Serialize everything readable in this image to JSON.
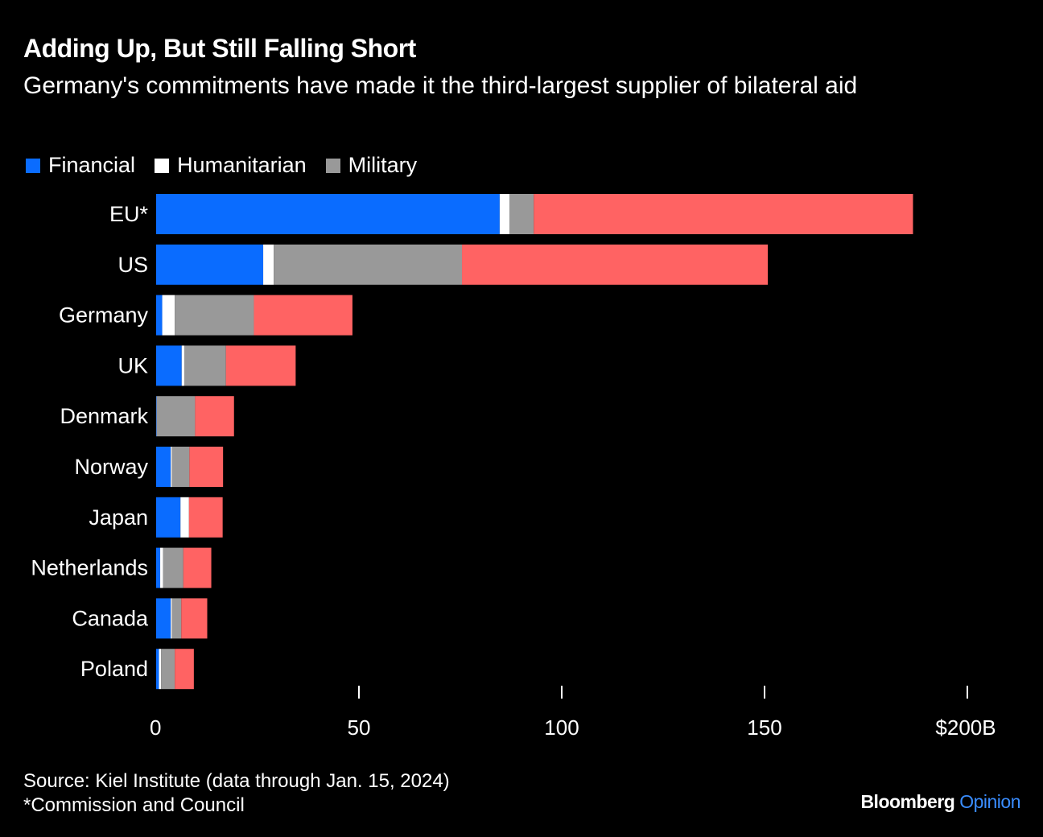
{
  "title": "Adding Up, But Still Falling Short",
  "subtitle": "Germany's commitments have made it the third-largest supplier of bilateral aid",
  "footer": {
    "source": "Source: Kiel Institute (data through Jan. 15, 2024)",
    "note": "*Commission and Council"
  },
  "logo": {
    "brand": "Bloomberg",
    "section": "Opinion"
  },
  "chart_data": {
    "type": "bar",
    "orientation": "horizontal",
    "stacked": true,
    "categories": [
      "EU*",
      "US",
      "Germany",
      "UK",
      "Denmark",
      "Norway",
      "Japan",
      "Netherlands",
      "Canada",
      "Poland"
    ],
    "series": [
      {
        "name": "Financial",
        "color": "#0a6cff",
        "values": [
          84.7,
          26.4,
          1.5,
          6.3,
          0.1,
          3.6,
          6.0,
          1.0,
          3.6,
          0.7
        ]
      },
      {
        "name": "Humanitarian",
        "color": "#ffffff",
        "values": [
          2.4,
          2.6,
          3.1,
          0.7,
          0.0,
          0.3,
          2.1,
          0.7,
          0.3,
          0.5
        ]
      },
      {
        "name": "Military",
        "color": "#999999",
        "values": [
          6.0,
          46.4,
          19.5,
          10.2,
          9.5,
          4.3,
          0.0,
          5.0,
          2.3,
          3.4
        ]
      },
      {
        "color": "#ff6363",
        "values": [
          93.5,
          75.4,
          24.3,
          17.2,
          9.6,
          8.3,
          8.3,
          6.9,
          6.4,
          4.7
        ]
      }
    ],
    "xlim": [
      0,
      200
    ],
    "xticks": [
      0,
      50,
      100,
      150,
      200
    ],
    "xtick_labels": [
      "0",
      "50",
      "100",
      "150",
      "$200B"
    ],
    "legend_position": "top-left",
    "grid": false
  }
}
